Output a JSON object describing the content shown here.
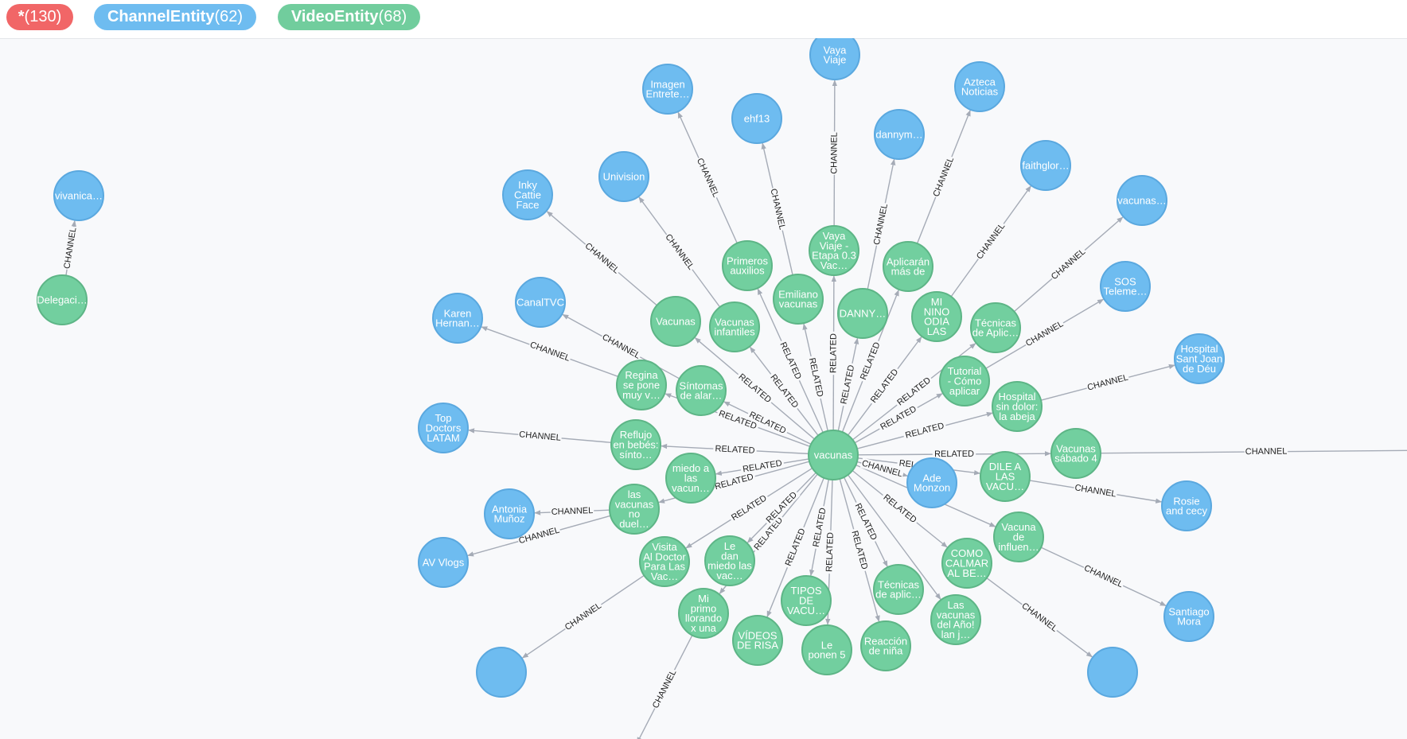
{
  "legend": {
    "all": {
      "name": "*",
      "count": "(130)"
    },
    "channel": {
      "name": "ChannelEntity",
      "count": "(62)"
    },
    "video": {
      "name": "VideoEntity",
      "count": "(68)"
    }
  },
  "colors": {
    "video": "#72cf9f",
    "channel": "#6ebcf0",
    "all": "#f16667"
  },
  "graph": {
    "nodes": [
      {
        "id": "hub",
        "type": "video",
        "lines": [
          "vacunas"
        ]
      },
      {
        "id": "deleg",
        "type": "video",
        "lines": [
          "Delegaci…"
        ]
      },
      {
        "id": "vivan",
        "type": "channel",
        "lines": [
          "vivanica…"
        ]
      },
      {
        "id": "vayav",
        "type": "video",
        "lines": [
          "Vaya",
          "Viaje -",
          "Etapa 0.3",
          "Vac…"
        ]
      },
      {
        "id": "vayac",
        "type": "channel",
        "lines": [
          "Vaya",
          "Viaje"
        ]
      },
      {
        "id": "danny",
        "type": "video",
        "lines": [
          "DANNY…"
        ]
      },
      {
        "id": "dannyc",
        "type": "channel",
        "lines": [
          "dannym…"
        ]
      },
      {
        "id": "aplic",
        "type": "video",
        "lines": [
          "Aplicarán",
          "más de"
        ]
      },
      {
        "id": "azteca",
        "type": "channel",
        "lines": [
          "Azteca",
          "Noticias"
        ]
      },
      {
        "id": "nino",
        "type": "video",
        "lines": [
          "MI",
          "NINO",
          "ODIA",
          "LAS"
        ]
      },
      {
        "id": "faith",
        "type": "channel",
        "lines": [
          "faithglor…"
        ]
      },
      {
        "id": "tecn1",
        "type": "video",
        "lines": [
          "Técnicas",
          "de Aplic…"
        ]
      },
      {
        "id": "vacch",
        "type": "channel",
        "lines": [
          "vacunas…"
        ]
      },
      {
        "id": "tutor",
        "type": "video",
        "lines": [
          "Tutorial",
          "- Cómo",
          "aplicar"
        ]
      },
      {
        "id": "sos",
        "type": "channel",
        "lines": [
          "SOS",
          "Teleme…"
        ]
      },
      {
        "id": "hosp",
        "type": "video",
        "lines": [
          "Hospital",
          "sin dolor:",
          "la abeja"
        ]
      },
      {
        "id": "hospc",
        "type": "channel",
        "lines": [
          "Hospital",
          "Sant Joan",
          "de Déu"
        ]
      },
      {
        "id": "sabado",
        "type": "video",
        "lines": [
          "Vacunas",
          "sábado 4"
        ]
      },
      {
        "id": "dile",
        "type": "video",
        "lines": [
          "DILE A",
          "LAS",
          "VACU…"
        ]
      },
      {
        "id": "rosie",
        "type": "channel",
        "lines": [
          "Rosie",
          "and cecy"
        ]
      },
      {
        "id": "ade",
        "type": "channel",
        "lines": [
          "Ade",
          "Monzon"
        ]
      },
      {
        "id": "influ",
        "type": "video",
        "lines": [
          "Vacuna",
          "de",
          "influen…"
        ]
      },
      {
        "id": "santi",
        "type": "channel",
        "lines": [
          "Santiago",
          "Mora"
        ]
      },
      {
        "id": "calmar",
        "type": "video",
        "lines": [
          "COMO",
          "CALMAR",
          "AL BE…"
        ]
      },
      {
        "id": "delano",
        "type": "video",
        "lines": [
          "Las",
          "vacunas",
          "del Año!",
          "lan j…"
        ]
      },
      {
        "id": "tecn2",
        "type": "video",
        "lines": [
          "Técnicas",
          "de aplic…"
        ]
      },
      {
        "id": "reacc",
        "type": "video",
        "lines": [
          "Reacción",
          "de niña"
        ]
      },
      {
        "id": "leponen",
        "type": "video",
        "lines": [
          "Le",
          "ponen 5"
        ]
      },
      {
        "id": "tipos",
        "type": "video",
        "lines": [
          "TIPOS",
          "DE",
          "VACU…"
        ]
      },
      {
        "id": "videos",
        "type": "video",
        "lines": [
          "VÍDEOS",
          "DE RISA"
        ]
      },
      {
        "id": "primo",
        "type": "video",
        "lines": [
          "Mi",
          "primo",
          "llorando",
          "x una"
        ]
      },
      {
        "id": "ledan",
        "type": "video",
        "lines": [
          "Le",
          "dan",
          "miedo las",
          "vac…"
        ]
      },
      {
        "id": "visita",
        "type": "video",
        "lines": [
          "Visita",
          "Al Doctor",
          "Para Las",
          "Vac…"
        ]
      },
      {
        "id": "noduel",
        "type": "video",
        "lines": [
          "las",
          "vacunas",
          "no",
          "duel…"
        ]
      },
      {
        "id": "miedo",
        "type": "video",
        "lines": [
          "miedo a",
          "las",
          "vacun…"
        ]
      },
      {
        "id": "reflujo",
        "type": "video",
        "lines": [
          "Reflujo",
          "en bebés:",
          "sínto…"
        ]
      },
      {
        "id": "sintomas",
        "type": "video",
        "lines": [
          "Síntomas",
          "de alar…"
        ]
      },
      {
        "id": "regina",
        "type": "video",
        "lines": [
          "Regina",
          "se pone",
          "muy v…"
        ]
      },
      {
        "id": "vacinf",
        "type": "video",
        "lines": [
          "Vacunas",
          "infantiles"
        ]
      },
      {
        "id": "vacv",
        "type": "video",
        "lines": [
          "Vacunas"
        ]
      },
      {
        "id": "primeros",
        "type": "video",
        "lines": [
          "Primeros",
          "auxilios"
        ]
      },
      {
        "id": "emiliano",
        "type": "video",
        "lines": [
          "Emiliano",
          "vacunas"
        ]
      },
      {
        "id": "imagen",
        "type": "channel",
        "lines": [
          "Imagen",
          "Entrete…"
        ]
      },
      {
        "id": "ehf",
        "type": "channel",
        "lines": [
          "ehf13"
        ]
      },
      {
        "id": "univ",
        "type": "channel",
        "lines": [
          "Univision"
        ]
      },
      {
        "id": "inky",
        "type": "channel",
        "lines": [
          "Inky",
          "Cattie",
          "Face"
        ]
      },
      {
        "id": "canaltv",
        "type": "channel",
        "lines": [
          "CanalTVC"
        ]
      },
      {
        "id": "karen",
        "type": "channel",
        "lines": [
          "Karen",
          "Hernan…"
        ]
      },
      {
        "id": "topdoc",
        "type": "channel",
        "lines": [
          "Top",
          "Doctors",
          "LATAM"
        ]
      },
      {
        "id": "antonia",
        "type": "channel",
        "lines": [
          "Antonia",
          "Muñoz"
        ]
      },
      {
        "id": "avv",
        "type": "channel",
        "lines": [
          "AV Vlogs"
        ]
      },
      {
        "id": "bl",
        "type": "channel",
        "lines": []
      },
      {
        "id": "br",
        "type": "channel",
        "lines": []
      }
    ],
    "edges": [
      {
        "from": "deleg",
        "to": "vivan",
        "label": "CHANNEL"
      },
      {
        "from": "hub",
        "to": "vayav",
        "label": "RELATED"
      },
      {
        "from": "hub",
        "to": "danny",
        "label": "RELATED"
      },
      {
        "from": "hub",
        "to": "aplic",
        "label": "RELATED"
      },
      {
        "from": "hub",
        "to": "nino",
        "label": "RELATED"
      },
      {
        "from": "hub",
        "to": "tecn1",
        "label": "RELATED"
      },
      {
        "from": "hub",
        "to": "tutor",
        "label": "RELATED"
      },
      {
        "from": "hub",
        "to": "hosp",
        "label": "RELATED"
      },
      {
        "from": "hub",
        "to": "sabado",
        "label": "RELATED"
      },
      {
        "from": "hub",
        "to": "dile",
        "label": "RELATED"
      },
      {
        "from": "hub",
        "to": "influ",
        "label": ""
      },
      {
        "from": "hub",
        "to": "calmar",
        "label": "RELATED"
      },
      {
        "from": "hub",
        "to": "delano",
        "label": ""
      },
      {
        "from": "hub",
        "to": "tecn2",
        "label": "RELATED"
      },
      {
        "from": "hub",
        "to": "reacc",
        "label": "RELATED"
      },
      {
        "from": "hub",
        "to": "leponen",
        "label": "RELATED"
      },
      {
        "from": "hub",
        "to": "tipos",
        "label": "RELATED"
      },
      {
        "from": "hub",
        "to": "videos",
        "label": "RELATED"
      },
      {
        "from": "hub",
        "to": "primo",
        "label": "RELATED"
      },
      {
        "from": "hub",
        "to": "ledan",
        "label": "RELATED"
      },
      {
        "from": "hub",
        "to": "visita",
        "label": "RELATED"
      },
      {
        "from": "hub",
        "to": "noduel",
        "label": "RELATED"
      },
      {
        "from": "hub",
        "to": "miedo",
        "label": "RELATED"
      },
      {
        "from": "hub",
        "to": "reflujo",
        "label": "RELATED"
      },
      {
        "from": "hub",
        "to": "sintomas",
        "label": "RELATED"
      },
      {
        "from": "hub",
        "to": "regina",
        "label": "RELATED"
      },
      {
        "from": "hub",
        "to": "vacinf",
        "label": "RELATED"
      },
      {
        "from": "hub",
        "to": "vacv",
        "label": "RELATED"
      },
      {
        "from": "hub",
        "to": "primeros",
        "label": "RELATED"
      },
      {
        "from": "hub",
        "to": "emiliano",
        "label": "RELATED"
      },
      {
        "from": "hub",
        "to": "ade",
        "label": "CHANNEL"
      },
      {
        "from": "vayav",
        "to": "vayac",
        "label": "CHANNEL"
      },
      {
        "from": "danny",
        "to": "dannyc",
        "label": "CHANNEL"
      },
      {
        "from": "aplic",
        "to": "azteca",
        "label": "CHANNEL"
      },
      {
        "from": "nino",
        "to": "faith",
        "label": "CHANNEL"
      },
      {
        "from": "tecn1",
        "to": "vacch",
        "label": "CHANNEL"
      },
      {
        "from": "tutor",
        "to": "sos",
        "label": "CHANNEL"
      },
      {
        "from": "hosp",
        "to": "hospc",
        "label": "CHANNEL"
      },
      {
        "from": "sabado",
        "to": "offR",
        "label": "CHANNEL"
      },
      {
        "from": "dile",
        "to": "rosie",
        "label": "CHANNEL"
      },
      {
        "from": "influ",
        "to": "santi",
        "label": "CHANNEL"
      },
      {
        "from": "calmar",
        "to": "br",
        "label": "CHANNEL"
      },
      {
        "from": "emiliano",
        "to": "ehf",
        "label": "CHANNEL"
      },
      {
        "from": "primeros",
        "to": "imagen",
        "label": "CHANNEL"
      },
      {
        "from": "vacinf",
        "to": "univ",
        "label": "CHANNEL"
      },
      {
        "from": "vacv",
        "to": "inky",
        "label": "CHANNEL"
      },
      {
        "from": "sintomas",
        "to": "canaltv",
        "label": "CHANNEL"
      },
      {
        "from": "regina",
        "to": "karen",
        "label": "CHANNEL"
      },
      {
        "from": "reflujo",
        "to": "topdoc",
        "label": "CHANNEL"
      },
      {
        "from": "noduel",
        "to": "antonia",
        "label": "CHANNEL"
      },
      {
        "from": "noduel",
        "to": "avv",
        "label": "CHANNEL"
      },
      {
        "from": "visita",
        "to": "bl",
        "label": "CHANNEL"
      },
      {
        "from": "primo",
        "to": "offB",
        "label": "CHANNEL"
      }
    ]
  }
}
